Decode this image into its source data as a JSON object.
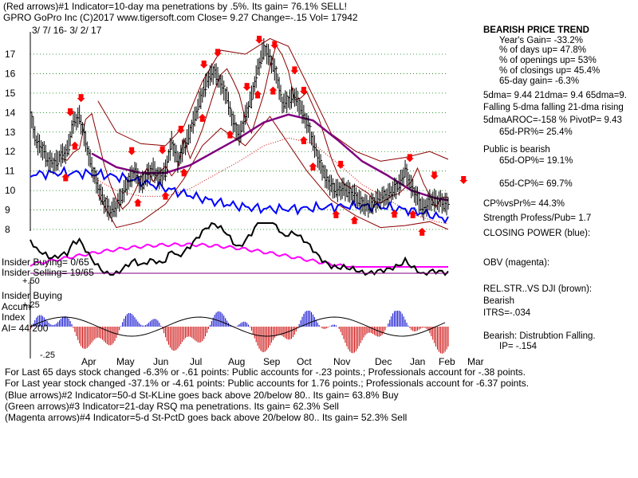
{
  "header": {
    "line1": "(Red arrows)#1 Indicator=10-day ma penetrations by .5%. Its gain= 76.1% SELL!",
    "line2": "GPRO   GoPro Inc  (C)2017 www.tigersoft.com     Close=  9.27  Change=-.15 Vol= 17942",
    "date_range": "3/ 7/ 16-  3/ 2/ 17"
  },
  "sidebar": {
    "title": "BEARISH PRICE TREND",
    "lines": [
      "Year's Gain= -33.2%",
      "% of days up= 47.8%",
      "% of openings up= 53%",
      "% of closings up= 45.4%",
      "65-day gain= -6.3%",
      "5dma= 9.44 21dma= 9.4 65dma=9.",
      "Falling 5-dma falling 21-dma rising",
      "5dmaAROC=-158 %  PivotP= 9.43",
      "65d-PR%= 25.4%",
      "Public is bearish",
      "65d-OP%= 19.1%",
      "65d-CP%= 69.7%",
      "CP%vsPr%=  44.3%",
      "Strength Profess/Pub= 1.7",
      "CLOSING POWER (blue):",
      "OBV (magenta):",
      "REL.STR..VS DJI (brown):",
      "Bearish",
      "ITRS=-.034",
      "Bearish: Distrubtion Falling.",
      "IP= -.154"
    ]
  },
  "panel_labels": {
    "insider_buying_ratio": "Insider Buying= 0/65",
    "insider_selling_ratio": "Insider Selling= 19/65",
    "plus_50": "+.50",
    "insider_buying": "Insider Buying",
    "accum": "Accum",
    "plus_25": "+.25",
    "index": "Index",
    "ai": "AI= 44/200",
    "minus_25": "-.25"
  },
  "footer": [
    "For Last 65 days stock changed -6.3% or -.61 points:  Public accounts for -.23 points.;  Professionals account for -.38 points.",
    "For Last year stock changed -37.1% or -4.61 points:  Public accounts for  1.76 points.;  Professionals account for -6.37 points.",
    "(Blue arrows)#2 Indicator=50-d St-KLine goes back above 20/below 80.. Its gain= 63.8% Buy",
    "(Green arrows)#3 Indicator=21-day RSQ ma penetrations. Its gain= 62.3% Sell",
    "(Magenta arrows)#4 Indicator=5-d St-PctD goes back above 20/below 80.. Its gain= 52.3% Sell"
  ],
  "colors": {
    "price": "#000000",
    "bands": "#8b0000",
    "ma65": "#800080",
    "closing_power": "#0000ff",
    "obv": "#ff00ff",
    "rel_strength": "#000000",
    "sell_arrow": "#ff0000",
    "grid": "#008000",
    "accum_pos": "#0000cc",
    "accum_neg": "#cc0000"
  },
  "chart_data": {
    "type": "line",
    "title": "GPRO   GoPro Inc",
    "y_ticks": [
      8,
      9,
      10,
      11,
      12,
      13,
      14,
      15,
      16,
      17
    ],
    "ylim": [
      7.6,
      18.0
    ],
    "months": [
      "Apr",
      "May",
      "Jun",
      "Jul",
      "Aug",
      "Sep",
      "Oct",
      "Nov",
      "Dec",
      "Jan",
      "Feb",
      "Mar"
    ],
    "close_approx": [
      [
        0,
        13.9
      ],
      [
        4,
        12.5
      ],
      [
        8,
        12.1
      ],
      [
        12,
        11.5
      ],
      [
        16,
        11.4
      ],
      [
        20,
        11.8
      ],
      [
        24,
        12.0
      ],
      [
        28,
        13.5
      ],
      [
        32,
        13.8
      ],
      [
        36,
        12.5
      ],
      [
        40,
        11.2
      ],
      [
        44,
        10.2
      ],
      [
        48,
        9.4
      ],
      [
        52,
        8.9
      ],
      [
        56,
        9.2
      ],
      [
        60,
        9.8
      ],
      [
        64,
        10.5
      ],
      [
        68,
        11.0
      ],
      [
        72,
        10.3
      ],
      [
        76,
        10.8
      ],
      [
        80,
        11.1
      ],
      [
        84,
        10.6
      ],
      [
        88,
        11.0
      ],
      [
        92,
        12.5
      ],
      [
        96,
        11.5
      ],
      [
        100,
        12.2
      ],
      [
        104,
        13.0
      ],
      [
        108,
        14.0
      ],
      [
        112,
        15.0
      ],
      [
        116,
        15.8
      ],
      [
        120,
        16.1
      ],
      [
        124,
        15.5
      ],
      [
        128,
        14.8
      ],
      [
        132,
        13.5
      ],
      [
        136,
        12.8
      ],
      [
        140,
        13.8
      ],
      [
        144,
        14.8
      ],
      [
        148,
        16.2
      ],
      [
        152,
        17.3
      ],
      [
        156,
        16.8
      ],
      [
        160,
        16.0
      ],
      [
        164,
        14.5
      ],
      [
        168,
        14.6
      ],
      [
        172,
        14.9
      ],
      [
        176,
        14.2
      ],
      [
        180,
        13.5
      ],
      [
        184,
        12.5
      ],
      [
        188,
        11.5
      ],
      [
        192,
        10.7
      ],
      [
        196,
        10.2
      ],
      [
        200,
        10.0
      ],
      [
        204,
        10.1
      ],
      [
        208,
        9.9
      ],
      [
        212,
        9.7
      ],
      [
        216,
        9.3
      ],
      [
        220,
        9.2
      ],
      [
        224,
        9.4
      ],
      [
        228,
        9.6
      ],
      [
        232,
        9.7
      ],
      [
        236,
        10.0
      ],
      [
        240,
        10.3
      ],
      [
        244,
        11.0
      ],
      [
        248,
        10.2
      ],
      [
        252,
        9.6
      ],
      [
        256,
        9.0
      ],
      [
        260,
        9.5
      ],
      [
        264,
        9.5
      ],
      [
        268,
        9.4
      ],
      [
        272,
        9.27
      ]
    ],
    "ma65_approx": [
      [
        40,
        11.9
      ],
      [
        56,
        11.2
      ],
      [
        72,
        10.9
      ],
      [
        88,
        10.9
      ],
      [
        104,
        11.3
      ],
      [
        120,
        12.0
      ],
      [
        136,
        12.7
      ],
      [
        152,
        13.5
      ],
      [
        168,
        13.9
      ],
      [
        184,
        13.6
      ],
      [
        200,
        12.6
      ],
      [
        216,
        11.5
      ],
      [
        232,
        10.8
      ],
      [
        248,
        10.0
      ],
      [
        264,
        9.6
      ],
      [
        272,
        9.5
      ]
    ],
    "upper_band_approx": [
      [
        44,
        14.6
      ],
      [
        56,
        13.0
      ],
      [
        72,
        12.4
      ],
      [
        88,
        12.3
      ],
      [
        100,
        13.3
      ],
      [
        112,
        15.6
      ],
      [
        124,
        17.2
      ],
      [
        140,
        17.0
      ],
      [
        156,
        17.8
      ],
      [
        168,
        17.4
      ],
      [
        180,
        15.5
      ],
      [
        196,
        12.9
      ],
      [
        212,
        12.0
      ],
      [
        228,
        11.5
      ],
      [
        244,
        11.7
      ],
      [
        260,
        12.0
      ],
      [
        272,
        11.6
      ]
    ],
    "lower_band_approx": [
      [
        44,
        9.8
      ],
      [
        56,
        8.1
      ],
      [
        72,
        8.4
      ],
      [
        88,
        9.3
      ],
      [
        100,
        10.6
      ],
      [
        112,
        12.3
      ],
      [
        124,
        13.2
      ],
      [
        140,
        12.3
      ],
      [
        156,
        13.8
      ],
      [
        168,
        12.4
      ],
      [
        180,
        11.0
      ],
      [
        196,
        9.5
      ],
      [
        212,
        8.7
      ],
      [
        228,
        8.1
      ],
      [
        244,
        8.2
      ],
      [
        260,
        8.4
      ],
      [
        272,
        8.0
      ]
    ],
    "sell_arrows_x": [
      26,
      33,
      66,
      86,
      98,
      113,
      122,
      141,
      149,
      159,
      172,
      178,
      202,
      247,
      263,
      282
    ],
    "buy_arrows_x": [
      23,
      29,
      70,
      88,
      100,
      112,
      130,
      148,
      158,
      178,
      184,
      199,
      211,
      237,
      249,
      255
    ]
  }
}
